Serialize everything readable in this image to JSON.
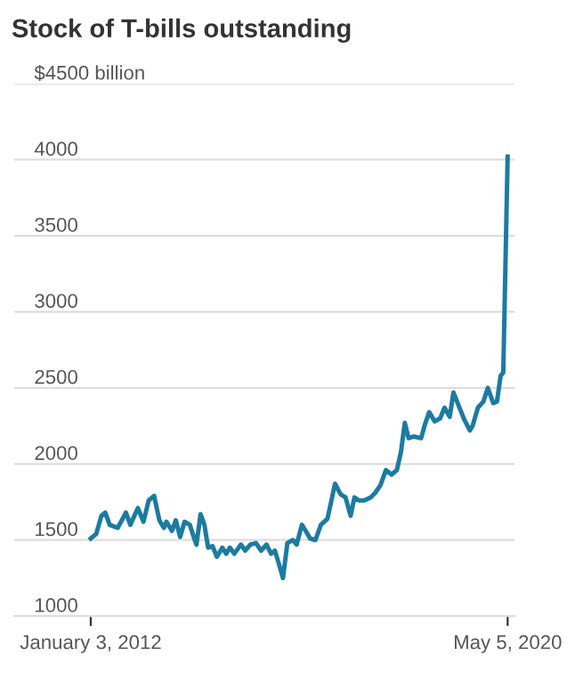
{
  "chart_data": {
    "type": "line",
    "title": "Stock of T-bills outstanding",
    "x": [
      "2012-01-03",
      "2012-02-12",
      "2012-03-21",
      "2012-04-18",
      "2012-05-20",
      "2012-07-18",
      "2012-09-16",
      "2012-10-18",
      "2012-12-12",
      "2013-01-22",
      "2013-03-01",
      "2013-04-10",
      "2013-05-18",
      "2013-06-20",
      "2013-07-09",
      "2013-08-18",
      "2013-09-15",
      "2013-10-17",
      "2013-11-18",
      "2013-12-27",
      "2014-01-24",
      "2014-02-13",
      "2014-03-15",
      "2014-04-12",
      "2014-05-09",
      "2014-06-10",
      "2014-07-12",
      "2014-08-21",
      "2014-09-18",
      "2014-10-15",
      "2014-11-16",
      "2015-01-04",
      "2015-02-04",
      "2015-03-14",
      "2015-04-23",
      "2015-06-01",
      "2015-07-10",
      "2015-08-12",
      "2015-09-09",
      "2015-10-06",
      "2015-11-07",
      "2015-12-09",
      "2016-01-18",
      "2016-02-15",
      "2016-03-24",
      "2016-04-21",
      "2016-05-23",
      "2016-07-01",
      "2016-08-10",
      "2016-09-27",
      "2016-10-21",
      "2016-11-21",
      "2017-01-01",
      "2017-02-06",
      "2017-03-15",
      "2017-04-12",
      "2017-05-14",
      "2017-06-22",
      "2017-08-09",
      "2017-09-10",
      "2017-10-19",
      "2017-11-28",
      "2018-01-08",
      "2018-02-16",
      "2018-03-18",
      "2018-04-15",
      "2018-05-12",
      "2018-06-20",
      "2018-08-12",
      "2018-09-09",
      "2018-10-10",
      "2018-11-19",
      "2018-12-29",
      "2019-01-30",
      "2019-03-09",
      "2019-04-05",
      "2019-05-15",
      "2019-06-24",
      "2019-08-03",
      "2019-08-23",
      "2019-10-01",
      "2019-11-10",
      "2019-12-12",
      "2020-01-21",
      "2020-02-17",
      "2020-03-15",
      "2020-04-03",
      "2020-05-05"
    ],
    "series": [
      {
        "color": "#1b7ba0",
        "values": [
          1510,
          1540,
          1660,
          1680,
          1600,
          1580,
          1680,
          1600,
          1710,
          1620,
          1760,
          1790,
          1630,
          1580,
          1620,
          1560,
          1630,
          1520,
          1620,
          1600,
          1520,
          1470,
          1670,
          1600,
          1450,
          1460,
          1390,
          1450,
          1410,
          1450,
          1410,
          1470,
          1430,
          1470,
          1480,
          1430,
          1470,
          1410,
          1430,
          1350,
          1250,
          1480,
          1500,
          1470,
          1600,
          1560,
          1510,
          1500,
          1600,
          1640,
          1740,
          1870,
          1800,
          1780,
          1660,
          1780,
          1760,
          1760,
          1780,
          1810,
          1860,
          1960,
          1930,
          1960,
          2080,
          2270,
          2170,
          2180,
          2170,
          2260,
          2340,
          2280,
          2300,
          2370,
          2310,
          2470,
          2380,
          2290,
          2220,
          2250,
          2370,
          2410,
          2500,
          2400,
          2410,
          2580,
          2600,
          4020
        ]
      }
    ],
    "ylim": [
      1000,
      4500
    ],
    "yticks": [
      1000,
      1500,
      2000,
      2500,
      3000,
      3500,
      4000,
      {
        "value": 4500,
        "label": "$4500 billion"
      }
    ],
    "xlim": [
      "2010-06-24",
      "2020-06-25"
    ],
    "xticks": [
      {
        "value": "2012-01-03",
        "label": "January 3, 2012"
      },
      {
        "value": "2020-05-05",
        "label": "May 5, 2020"
      }
    ],
    "grid": "y"
  }
}
